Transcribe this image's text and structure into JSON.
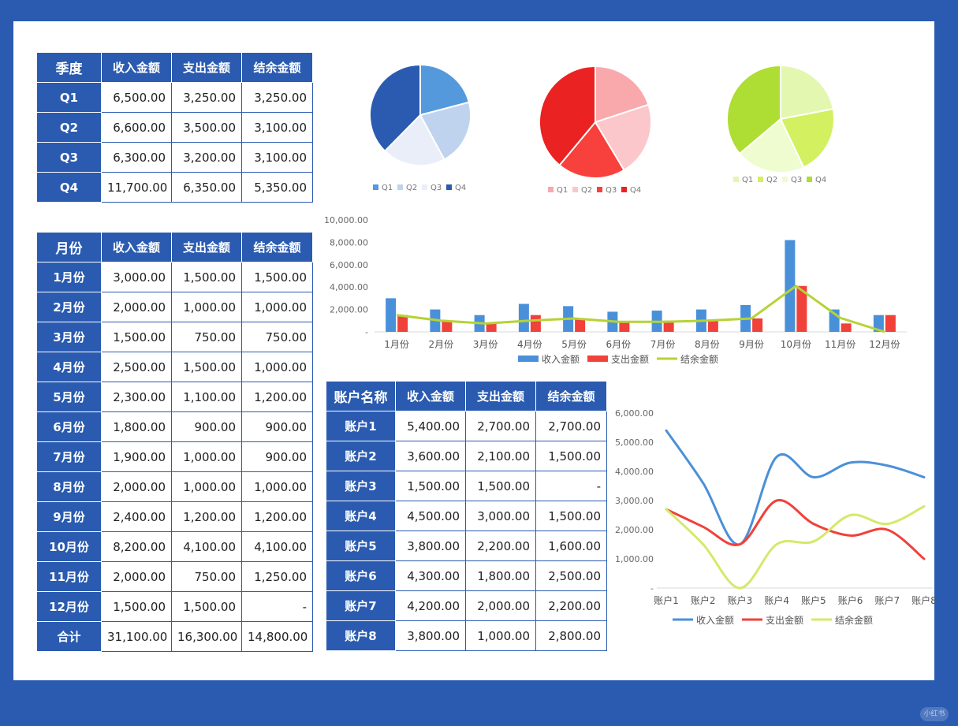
{
  "colors": {
    "frame": "#2a5bb0",
    "income": "#4a90d9",
    "expense": "#f0413a",
    "balance": "#b5d335",
    "balance_line2": "#d6e86a",
    "blue_pie": [
      "#5599dd",
      "#bfd3ef",
      "#e9eef9",
      "#2a5bb0"
    ],
    "red_pie": [
      "#f9a8ac",
      "#fbc7cb",
      "#f8403c",
      "#ea2222"
    ],
    "green_pie": [
      "#e3f7b0",
      "#d3f060",
      "#eefcd0",
      "#aedd33"
    ]
  },
  "quarter_table": {
    "headers": [
      "季度",
      "收入金额",
      "支出金额",
      "结余金额"
    ],
    "rows": [
      [
        "Q1",
        "6,500.00",
        "3,250.00",
        "3,250.00"
      ],
      [
        "Q2",
        "6,600.00",
        "3,500.00",
        "3,100.00"
      ],
      [
        "Q3",
        "6,300.00",
        "3,200.00",
        "3,100.00"
      ],
      [
        "Q4",
        "11,700.00",
        "6,350.00",
        "5,350.00"
      ]
    ]
  },
  "month_table": {
    "headers": [
      "月份",
      "收入金额",
      "支出金额",
      "结余金额"
    ],
    "rows": [
      [
        "1月份",
        "3,000.00",
        "1,500.00",
        "1,500.00"
      ],
      [
        "2月份",
        "2,000.00",
        "1,000.00",
        "1,000.00"
      ],
      [
        "3月份",
        "1,500.00",
        "750.00",
        "750.00"
      ],
      [
        "4月份",
        "2,500.00",
        "1,500.00",
        "1,000.00"
      ],
      [
        "5月份",
        "2,300.00",
        "1,100.00",
        "1,200.00"
      ],
      [
        "6月份",
        "1,800.00",
        "900.00",
        "900.00"
      ],
      [
        "7月份",
        "1,900.00",
        "1,000.00",
        "900.00"
      ],
      [
        "8月份",
        "2,000.00",
        "1,000.00",
        "1,000.00"
      ],
      [
        "9月份",
        "2,400.00",
        "1,200.00",
        "1,200.00"
      ],
      [
        "10月份",
        "8,200.00",
        "4,100.00",
        "4,100.00"
      ],
      [
        "11月份",
        "2,000.00",
        "750.00",
        "1,250.00"
      ],
      [
        "12月份",
        "1,500.00",
        "1,500.00",
        "-"
      ],
      [
        "合计",
        "31,100.00",
        "16,300.00",
        "14,800.00"
      ]
    ]
  },
  "account_table": {
    "headers": [
      "账户名称",
      "收入金额",
      "支出金额",
      "结余金额"
    ],
    "rows": [
      [
        "账户1",
        "5,400.00",
        "2,700.00",
        "2,700.00"
      ],
      [
        "账户2",
        "3,600.00",
        "2,100.00",
        "1,500.00"
      ],
      [
        "账户3",
        "1,500.00",
        "1,500.00",
        "-"
      ],
      [
        "账户4",
        "4,500.00",
        "3,000.00",
        "1,500.00"
      ],
      [
        "账户5",
        "3,800.00",
        "2,200.00",
        "1,600.00"
      ],
      [
        "账户6",
        "4,300.00",
        "1,800.00",
        "2,500.00"
      ],
      [
        "账户7",
        "4,200.00",
        "2,000.00",
        "2,200.00"
      ],
      [
        "账户8",
        "3,800.00",
        "1,000.00",
        "2,800.00"
      ]
    ]
  },
  "chart_data": [
    {
      "type": "pie",
      "categories": [
        "Q1",
        "Q2",
        "Q3",
        "Q4"
      ],
      "values": [
        6500,
        6600,
        6300,
        11700
      ],
      "legend": "bottom"
    },
    {
      "type": "pie",
      "categories": [
        "Q1",
        "Q2",
        "Q3",
        "Q4"
      ],
      "values": [
        3250,
        3500,
        3200,
        6350
      ],
      "legend": "bottom"
    },
    {
      "type": "pie",
      "categories": [
        "Q1",
        "Q2",
        "Q3",
        "Q4"
      ],
      "values": [
        3250,
        3100,
        3100,
        5350
      ],
      "legend": "bottom"
    },
    {
      "type": "bar",
      "categories": [
        "1月份",
        "2月份",
        "3月份",
        "4月份",
        "5月份",
        "6月份",
        "7月份",
        "8月份",
        "9月份",
        "10月份",
        "11月份",
        "12月份"
      ],
      "series": [
        {
          "name": "收入金额",
          "type": "bar",
          "values": [
            3000,
            2000,
            1500,
            2500,
            2300,
            1800,
            1900,
            2000,
            2400,
            8200,
            2000,
            1500
          ]
        },
        {
          "name": "支出金额",
          "type": "bar",
          "values": [
            1500,
            1000,
            750,
            1500,
            1100,
            900,
            1000,
            1000,
            1200,
            4100,
            750,
            1500
          ]
        },
        {
          "name": "结余金额",
          "type": "line",
          "values": [
            1500,
            1000,
            750,
            1000,
            1200,
            900,
            900,
            1000,
            1200,
            4100,
            1250,
            0
          ]
        }
      ],
      "yticks": [
        "-",
        "2,000.00",
        "4,000.00",
        "6,000.00",
        "8,000.00",
        "10,000.00"
      ],
      "ylim": [
        0,
        10000
      ],
      "grid": false,
      "legend": "bottom"
    },
    {
      "type": "line",
      "smooth": true,
      "categories": [
        "账户1",
        "账户2",
        "账户3",
        "账户4",
        "账户5",
        "账户6",
        "账户7",
        "账户8"
      ],
      "series": [
        {
          "name": "收入金额",
          "values": [
            5400,
            3600,
            1500,
            4500,
            3800,
            4300,
            4200,
            3800
          ]
        },
        {
          "name": "支出金额",
          "values": [
            2700,
            2100,
            1500,
            3000,
            2200,
            1800,
            2000,
            1000
          ]
        },
        {
          "name": "结余金额",
          "values": [
            2700,
            1500,
            0,
            1500,
            1600,
            2500,
            2200,
            2800
          ]
        }
      ],
      "yticks": [
        "-",
        "1,000.00",
        "2,000.00",
        "3,000.00",
        "4,000.00",
        "5,000.00",
        "6,000.00"
      ],
      "ylim": [
        0,
        6000
      ],
      "grid": false,
      "legend": "bottom"
    }
  ],
  "watermark": "小红书"
}
